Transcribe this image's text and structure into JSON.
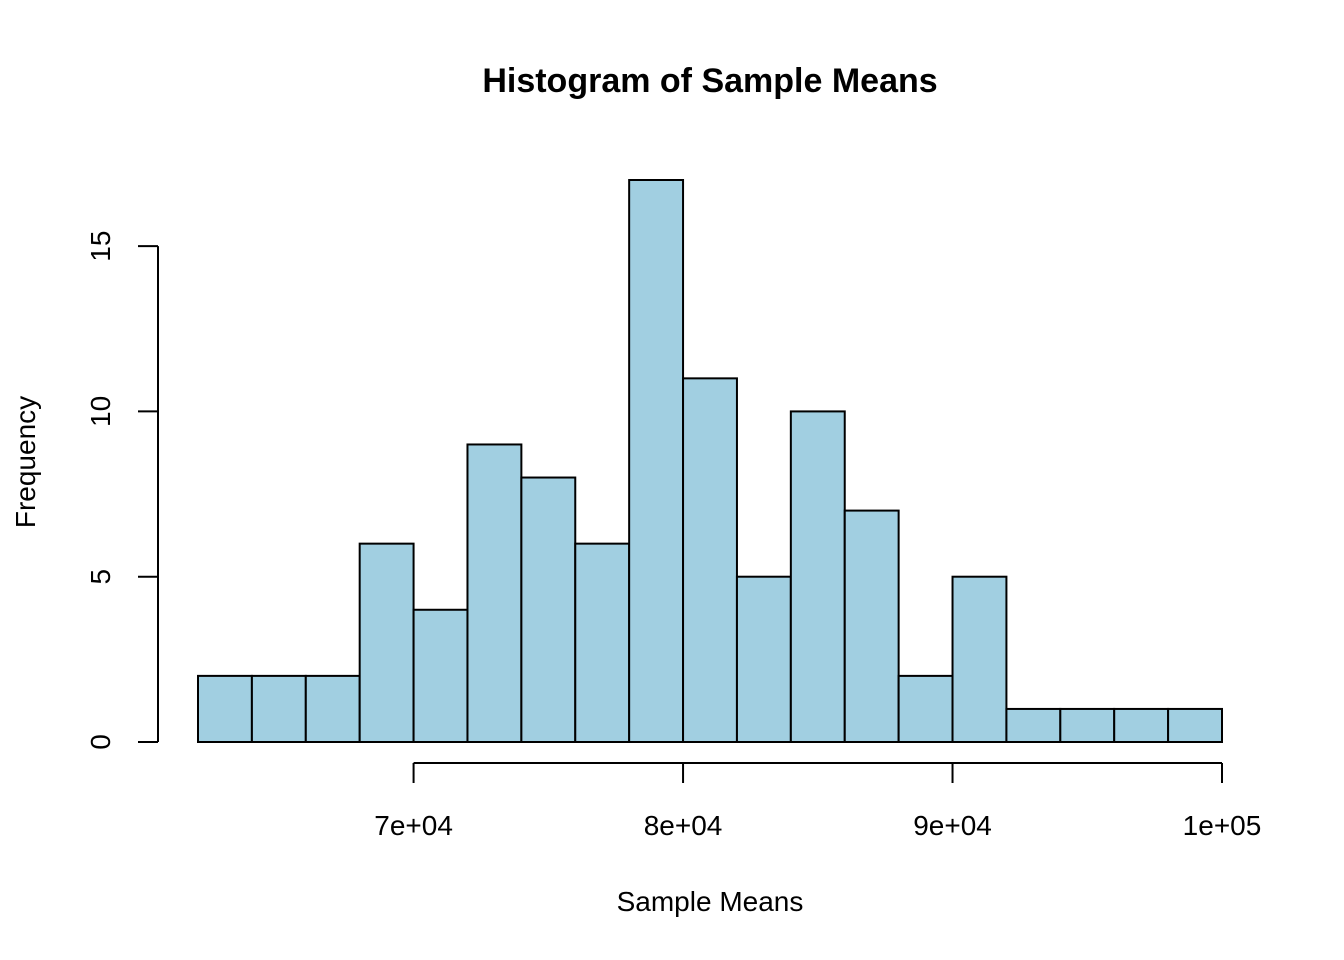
{
  "chart_data": {
    "type": "bar",
    "title": "Histogram of Sample Means",
    "xlabel": "Sample Means",
    "ylabel": "Frequency",
    "bin_width": 2000,
    "bins": [
      {
        "x0": 62000,
        "x1": 64000,
        "count": 2
      },
      {
        "x0": 64000,
        "x1": 66000,
        "count": 2
      },
      {
        "x0": 66000,
        "x1": 68000,
        "count": 2
      },
      {
        "x0": 68000,
        "x1": 70000,
        "count": 6
      },
      {
        "x0": 70000,
        "x1": 72000,
        "count": 4
      },
      {
        "x0": 72000,
        "x1": 74000,
        "count": 9
      },
      {
        "x0": 74000,
        "x1": 76000,
        "count": 8
      },
      {
        "x0": 76000,
        "x1": 78000,
        "count": 6
      },
      {
        "x0": 78000,
        "x1": 80000,
        "count": 17
      },
      {
        "x0": 80000,
        "x1": 82000,
        "count": 11
      },
      {
        "x0": 82000,
        "x1": 84000,
        "count": 5
      },
      {
        "x0": 84000,
        "x1": 86000,
        "count": 10
      },
      {
        "x0": 86000,
        "x1": 88000,
        "count": 7
      },
      {
        "x0": 88000,
        "x1": 90000,
        "count": 2
      },
      {
        "x0": 90000,
        "x1": 92000,
        "count": 5
      },
      {
        "x0": 92000,
        "x1": 94000,
        "count": 1
      },
      {
        "x0": 94000,
        "x1": 96000,
        "count": 1
      },
      {
        "x0": 96000,
        "x1": 98000,
        "count": 1
      },
      {
        "x0": 98000,
        "x1": 100000,
        "count": 1
      }
    ],
    "x_ticks": [
      {
        "value": 70000,
        "label": "7e+04"
      },
      {
        "value": 80000,
        "label": "8e+04"
      },
      {
        "value": 90000,
        "label": "9e+04"
      },
      {
        "value": 100000,
        "label": "1e+05"
      }
    ],
    "y_ticks": [
      {
        "value": 0,
        "label": "0"
      },
      {
        "value": 5,
        "label": "5"
      },
      {
        "value": 10,
        "label": "10"
      },
      {
        "value": 15,
        "label": "15"
      }
    ],
    "xlim": [
      62000,
      100000
    ],
    "ylim": [
      0,
      17
    ],
    "grid": false,
    "legend": "none",
    "bar_color": "#A1CFE1",
    "edge_color": "#000000"
  }
}
